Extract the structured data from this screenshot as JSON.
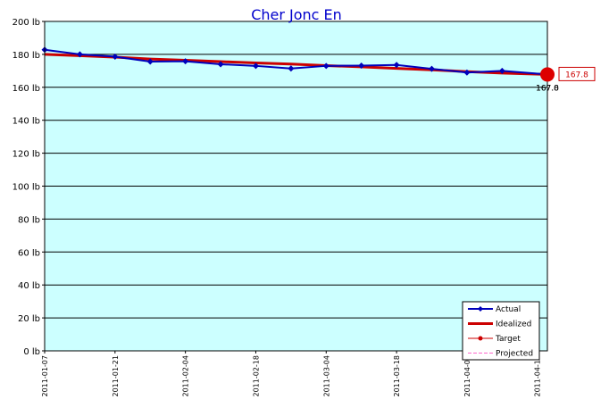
{
  "chart_data": {
    "type": "line",
    "title": "Cher Jonc En",
    "xlabel": "",
    "ylabel": "",
    "y_unit": "lb",
    "ylim": [
      0,
      200
    ],
    "yticks": [
      0,
      20,
      40,
      60,
      80,
      100,
      120,
      140,
      160,
      180,
      200
    ],
    "ytick_labels": [
      "0 lb",
      "20 lb",
      "40 lb",
      "60 lb",
      "80 lb",
      "100 lb",
      "120 lb",
      "140 lb",
      "160 lb",
      "180 lb",
      "200 lb"
    ],
    "xlim": [
      "2011-01-07",
      "2011-04-17"
    ],
    "xtick_labels": [
      "2011-01-07",
      "2011-01-21",
      "2011-02-04",
      "2011-02-18",
      "2011-03-04",
      "2011-03-18",
      "2011-04-01",
      "2011-04-15"
    ],
    "grid": true,
    "background_color": "#ccffff",
    "legend_position": "bottom-right",
    "series": [
      {
        "name": "Actual",
        "color": "#0000bb",
        "x": [
          "2011-01-07",
          "2011-01-14",
          "2011-01-21",
          "2011-01-28",
          "2011-02-04",
          "2011-02-11",
          "2011-02-18",
          "2011-02-25",
          "2011-03-04",
          "2011-03-11",
          "2011-03-18",
          "2011-03-25",
          "2011-04-01",
          "2011-04-08",
          "2011-04-17"
        ],
        "values": [
          182.8,
          180.0,
          178.6,
          175.6,
          175.8,
          174.0,
          173.0,
          171.4,
          173.0,
          173.2,
          173.6,
          171.2,
          169.0,
          170.0,
          167.8
        ]
      },
      {
        "name": "Idealized",
        "color": "#cc0000",
        "x": [
          "2011-01-07",
          "2011-01-14",
          "2011-01-21",
          "2011-01-28",
          "2011-02-04",
          "2011-02-11",
          "2011-02-18",
          "2011-02-25",
          "2011-03-04",
          "2011-03-11",
          "2011-03-18",
          "2011-03-25",
          "2011-04-01",
          "2011-04-08",
          "2011-04-17"
        ],
        "values": [
          180.0,
          179.2,
          178.3,
          177.2,
          176.4,
          175.6,
          174.8,
          174.1,
          173.2,
          172.4,
          171.5,
          170.6,
          169.5,
          168.6,
          167.8
        ]
      },
      {
        "name": "Target",
        "color": "#cc0000",
        "x": [],
        "values": []
      },
      {
        "name": "Projected",
        "color": "#ff66cc",
        "x": [],
        "values": []
      }
    ],
    "end_marker": {
      "date": "2011-04-17",
      "value": 167.8,
      "color": "#dd0000"
    },
    "end_labels": [
      "167.8",
      "167.0"
    ],
    "callout_label": "167.8"
  }
}
